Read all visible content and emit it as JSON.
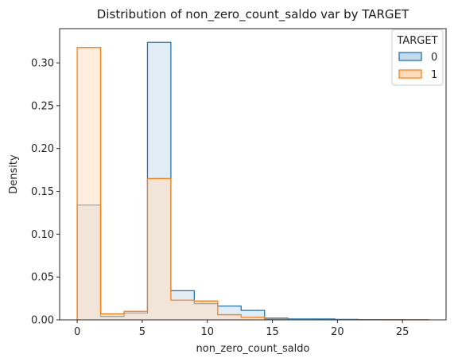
{
  "chart_data": {
    "type": "histogram",
    "title": "Distribution of non_zero_count_saldo var by TARGET",
    "xlabel": "non_zero_count_saldo",
    "ylabel": "Density",
    "xlim": [
      -1.35,
      28.35
    ],
    "ylim": [
      0,
      0.34
    ],
    "xticks": [
      0,
      5,
      10,
      15,
      20,
      25
    ],
    "yticks": [
      0.0,
      0.05,
      0.1,
      0.15,
      0.2,
      0.25,
      0.3
    ],
    "ytick_labels": [
      "0.00",
      "0.05",
      "0.10",
      "0.15",
      "0.20",
      "0.25",
      "0.30"
    ],
    "bin_edges": [
      0,
      1.8,
      3.6,
      5.4,
      7.2,
      9.0,
      10.8,
      12.6,
      14.4,
      16.2,
      18.0,
      19.8,
      21.6,
      23.4,
      25.2,
      27.0
    ],
    "legend": {
      "title": "TARGET",
      "position": "upper right"
    },
    "series": [
      {
        "name": "0",
        "color": "#1f77b4",
        "fill": "#c5d9eb",
        "values": [
          0.134,
          0.004,
          0.008,
          0.324,
          0.034,
          0.019,
          0.016,
          0.011,
          0.002,
          0.001,
          0.001,
          0.0005,
          0.0003,
          0.0002,
          0.0001
        ]
      },
      {
        "name": "1",
        "color": "#ff7f0e",
        "fill": "#ffdcbe",
        "values": [
          0.318,
          0.007,
          0.01,
          0.165,
          0.023,
          0.022,
          0.006,
          0.003,
          0.0005,
          0.0002,
          0.0001,
          0.0001,
          0.0001,
          0.0,
          0.0
        ]
      }
    ]
  }
}
